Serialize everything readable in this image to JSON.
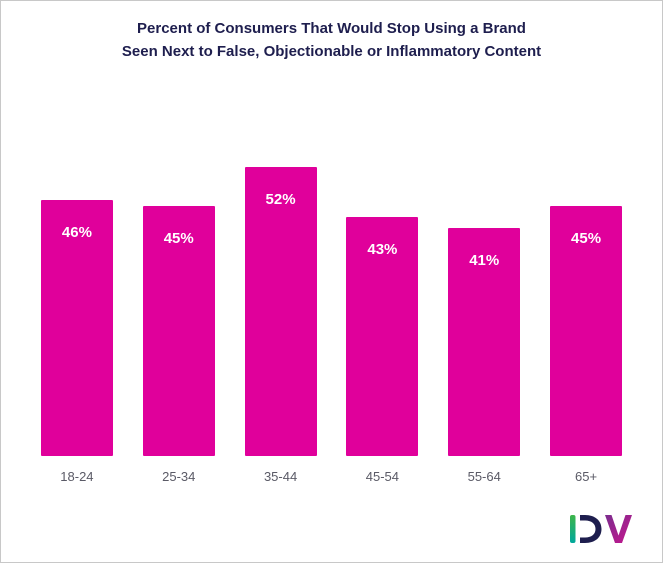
{
  "title": {
    "line1": "Percent of Consumers That Would Stop Using a Brand",
    "line2": "Seen Next to False, Objectionable or Inflammatory Content"
  },
  "chart_data": {
    "type": "bar",
    "title": "Percent of Consumers That Would Stop Using a Brand Seen Next to False, Objectionable or Inflammatory Content",
    "categories": [
      "18-24",
      "25-34",
      "35-44",
      "45-54",
      "55-64",
      "65+"
    ],
    "values": [
      46,
      45,
      52,
      43,
      41,
      45
    ],
    "data_labels": [
      "46%",
      "45%",
      "52%",
      "43%",
      "41%",
      "45%"
    ],
    "xlabel": "",
    "ylabel": "",
    "ylim": [
      0,
      53
    ],
    "grid": false,
    "legend": "none",
    "bar_color": "#e0009b",
    "value_label_color": "#ffffff",
    "category_label_color": "#5a5a66",
    "title_color": "#1e1e4e"
  },
  "logo": {
    "name": "DV",
    "stem_color_top": "#3db54a",
    "stem_color_bottom": "#00a89c",
    "d_color": "#1e1e4e",
    "v_color_top": "#7b2d8e",
    "v_color_bottom": "#c6168d"
  }
}
